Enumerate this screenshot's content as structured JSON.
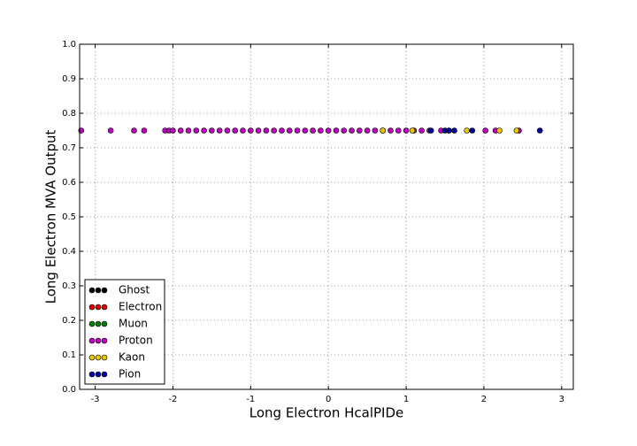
{
  "chart_data": {
    "type": "scatter",
    "xlabel": "Long Electron HcalPIDe",
    "ylabel": "Long Electron MVA Output",
    "xlim": [
      -3.2,
      3.15
    ],
    "ylim": [
      0,
      1
    ],
    "xticks": [
      -3,
      -2,
      -1,
      0,
      1,
      2,
      3
    ],
    "yticks": [
      {
        "value": 0,
        "label": "0.0"
      },
      0.1,
      0.2,
      0.3,
      0.4,
      0.5,
      0.6,
      0.7,
      0.8,
      0.9,
      {
        "value": 1,
        "label": "1.0"
      }
    ],
    "grid": true,
    "legend": "lower left",
    "series": [
      {
        "name": "Ghost",
        "color": "#000000",
        "x": [],
        "y": []
      },
      {
        "name": "Electron",
        "color": "#e00000",
        "x": [],
        "y": []
      },
      {
        "name": "Muon",
        "color": "#008000",
        "x": [],
        "y": []
      },
      {
        "name": "Proton",
        "color": "#c000c0",
        "x": [
          -3.18,
          -2.8,
          -2.5,
          -2.37,
          -2.1,
          -2.05,
          -2,
          -1.9,
          -1.8,
          -1.7,
          -1.6,
          -1.5,
          -1.4,
          -1.3,
          -1.2,
          -1.1,
          -1,
          -0.9,
          -0.8,
          -0.7,
          -0.6,
          -0.5,
          -0.4,
          -0.3,
          -0.2,
          -0.1,
          0,
          0.1,
          0.2,
          0.3,
          0.4,
          0.5,
          0.6,
          0.7,
          0.8,
          0.9,
          1,
          1.1,
          1.2,
          1.3,
          1.45,
          1.55,
          2.02,
          2.15,
          2.45
        ],
        "y": [
          0.75,
          0.75,
          0.75,
          0.75,
          0.75,
          0.75,
          0.75,
          0.75,
          0.75,
          0.75,
          0.75,
          0.75,
          0.75,
          0.75,
          0.75,
          0.75,
          0.75,
          0.75,
          0.75,
          0.75,
          0.75,
          0.75,
          0.75,
          0.75,
          0.75,
          0.75,
          0.75,
          0.75,
          0.75,
          0.75,
          0.75,
          0.75,
          0.75,
          0.75,
          0.75,
          0.75,
          0.75,
          0.75,
          0.75,
          0.75,
          0.75,
          0.75,
          0.75,
          0.75,
          0.75
        ]
      },
      {
        "name": "Kaon",
        "color": "#e6c800",
        "x": [
          0.7,
          1.08,
          1.78,
          2.2,
          2.42
        ],
        "y": [
          0.75,
          0.75,
          0.75,
          0.75,
          0.75
        ]
      },
      {
        "name": "Pion",
        "color": "#0000a0",
        "x": [
          1.32,
          1.5,
          1.55,
          1.62,
          1.85,
          2.72
        ],
        "y": [
          0.75,
          0.75,
          0.75,
          0.75,
          0.75,
          0.75
        ]
      }
    ]
  }
}
